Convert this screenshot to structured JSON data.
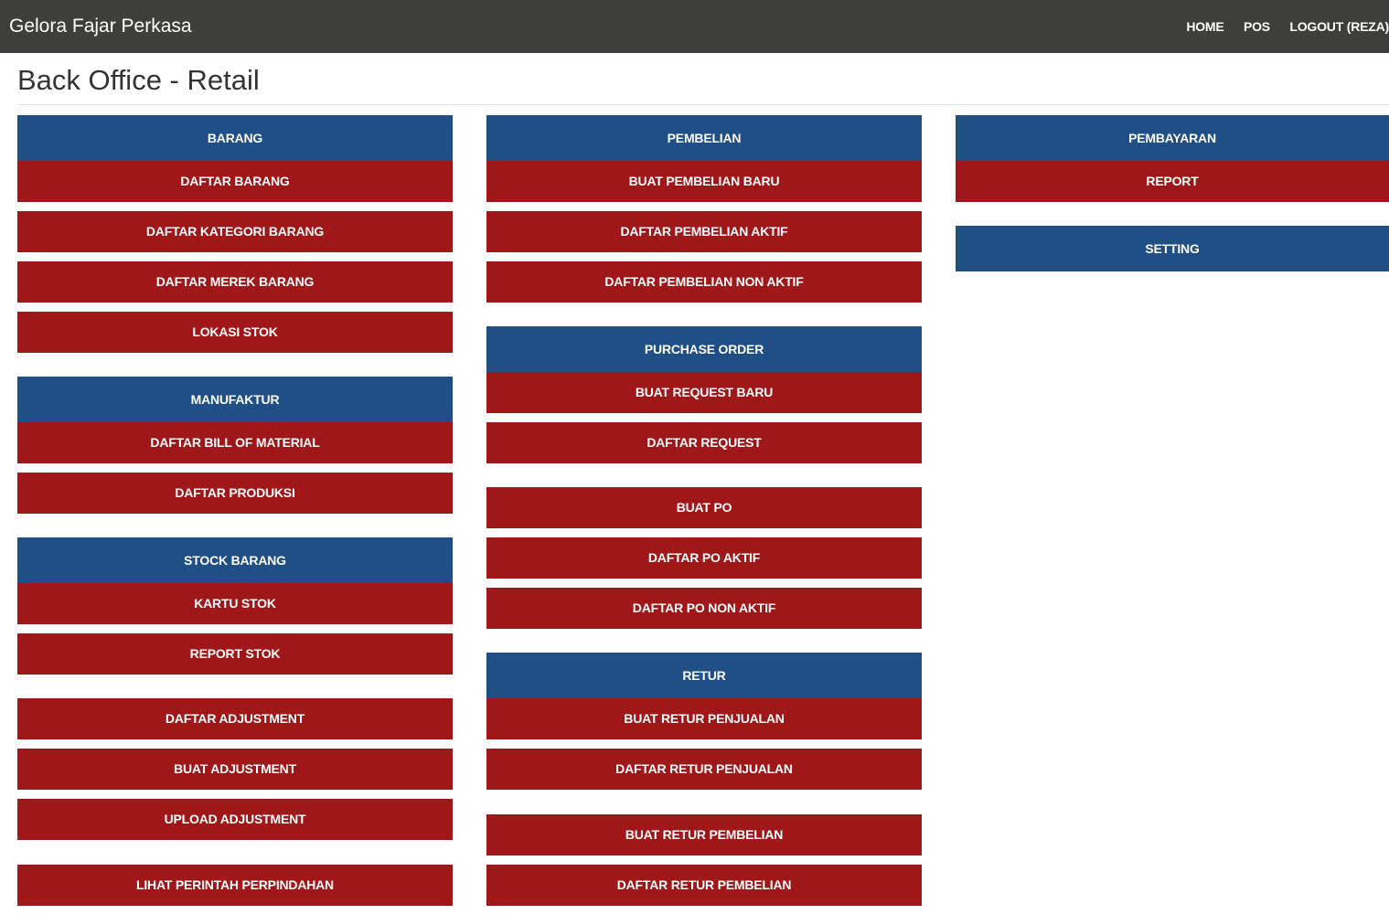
{
  "navbar": {
    "brand": "Gelora Fajar Perkasa",
    "links": [
      "HOME",
      "POS",
      "LOGOUT (REZA)"
    ]
  },
  "page": {
    "title": "Back Office - Retail"
  },
  "colors": {
    "navbar_bg": "#3e3e3a",
    "header_blue": "#1f4f85",
    "button_red": "#a01719"
  },
  "columns": [
    [
      {
        "type": "header",
        "label": "BARANG"
      },
      {
        "type": "button",
        "label": "DAFTAR BARANG"
      },
      {
        "type": "button",
        "label": "DAFTAR KATEGORI BARANG"
      },
      {
        "type": "button",
        "label": "DAFTAR MEREK BARANG"
      },
      {
        "type": "button",
        "label": "LOKASI STOK"
      },
      {
        "type": "header",
        "label": "MANUFAKTUR"
      },
      {
        "type": "button",
        "label": "DAFTAR BILL OF MATERIAL"
      },
      {
        "type": "button",
        "label": "DAFTAR PRODUKSI"
      },
      {
        "type": "header",
        "label": "STOCK BARANG"
      },
      {
        "type": "button",
        "label": "KARTU STOK"
      },
      {
        "type": "button",
        "label": "REPORT STOK"
      },
      {
        "type": "button",
        "label": "DAFTAR ADJUSTMENT"
      },
      {
        "type": "button",
        "label": "BUAT ADJUSTMENT"
      },
      {
        "type": "button",
        "label": "UPLOAD ADJUSTMENT"
      },
      {
        "type": "button",
        "label": "LIHAT PERINTAH PERPINDAHAN"
      }
    ],
    [
      {
        "type": "header",
        "label": "PEMBELIAN"
      },
      {
        "type": "button",
        "label": "BUAT PEMBELIAN BARU"
      },
      {
        "type": "button",
        "label": "DAFTAR PEMBELIAN AKTIF"
      },
      {
        "type": "button",
        "label": "DAFTAR PEMBELIAN NON AKTIF"
      },
      {
        "type": "header",
        "label": "PURCHASE ORDER"
      },
      {
        "type": "button",
        "label": "BUAT REQUEST BARU"
      },
      {
        "type": "button",
        "label": "DAFTAR REQUEST"
      },
      {
        "type": "button",
        "label": "BUAT PO"
      },
      {
        "type": "button",
        "label": "DAFTAR PO AKTIF"
      },
      {
        "type": "button",
        "label": "DAFTAR PO NON AKTIF"
      },
      {
        "type": "header",
        "label": "RETUR"
      },
      {
        "type": "button",
        "label": "BUAT RETUR PENJUALAN"
      },
      {
        "type": "button",
        "label": "DAFTAR RETUR PENJUALAN"
      },
      {
        "type": "button",
        "label": "BUAT RETUR PEMBELIAN"
      },
      {
        "type": "button",
        "label": "DAFTAR RETUR PEMBELIAN"
      }
    ],
    [
      {
        "type": "header",
        "label": "PEMBAYARAN"
      },
      {
        "type": "button",
        "label": "REPORT"
      },
      {
        "type": "header",
        "label": "SETTING"
      }
    ]
  ]
}
